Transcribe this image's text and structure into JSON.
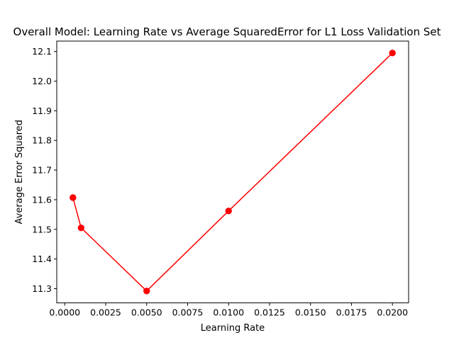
{
  "chart_data": {
    "type": "line",
    "title": "Overall Model: Learning Rate vs Average SquaredError for L1 Loss Validation Set",
    "xlabel": "Learning Rate",
    "ylabel": "Average Error Squared",
    "x": [
      0.0005,
      0.001,
      0.005,
      0.01,
      0.02
    ],
    "series": [
      {
        "values": [
          11.607,
          11.505,
          11.292,
          11.562,
          12.095
        ],
        "color": "#ff0000",
        "marker": "circle"
      }
    ],
    "xlim": [
      -0.0004875,
      0.0209875
    ],
    "ylim": [
      11.2518,
      12.1352
    ],
    "xticks": [
      0.0,
      0.0025,
      0.005,
      0.0075,
      0.01,
      0.0125,
      0.015,
      0.0175,
      0.02
    ],
    "xtick_labels": [
      "0.0000",
      "0.0025",
      "0.0050",
      "0.0075",
      "0.0100",
      "0.0125",
      "0.0150",
      "0.0175",
      "0.0200"
    ],
    "yticks": [
      11.3,
      11.4,
      11.5,
      11.6,
      11.7,
      11.8,
      11.9,
      12.0,
      12.1
    ],
    "ytick_labels": [
      "11.3",
      "11.4",
      "11.5",
      "11.6",
      "11.7",
      "11.8",
      "11.9",
      "12.0",
      "12.1"
    ],
    "grid": false,
    "legend": "none"
  }
}
